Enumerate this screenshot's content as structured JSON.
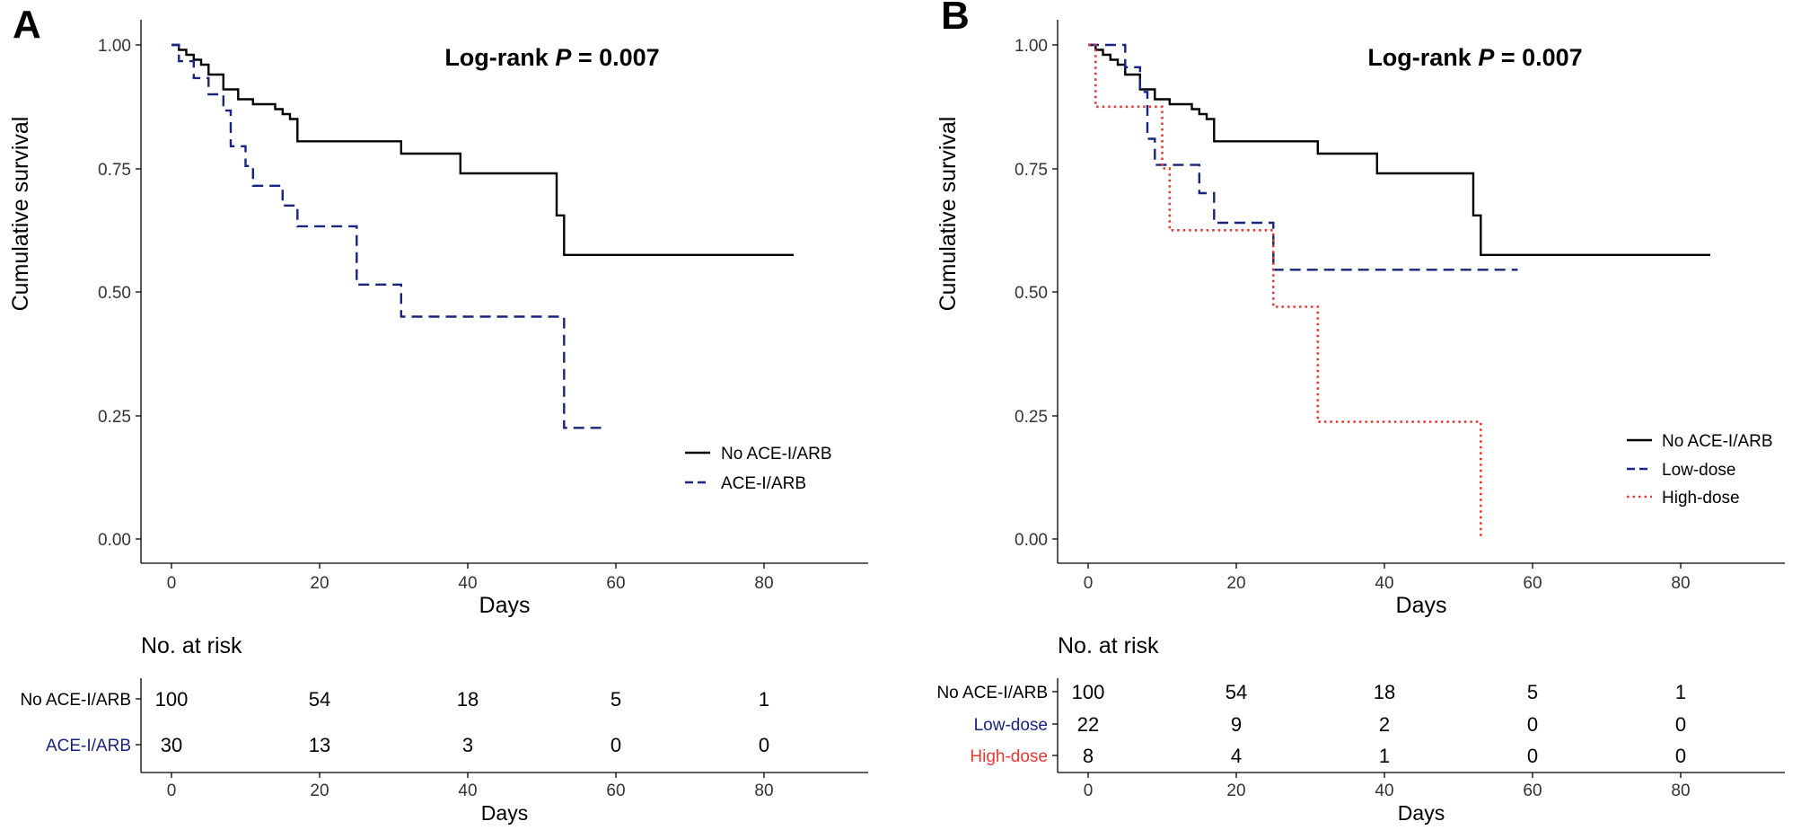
{
  "chart_data": [
    {
      "type": "line",
      "panel": "A",
      "title": "Log-rank P = 0.007",
      "title_parts": {
        "prefix": "Log-rank ",
        "italic": "P",
        "suffix": " = 0.007"
      },
      "xlabel": "Days",
      "ylabel": "Cumulative survival",
      "xlim": [
        -5,
        93
      ],
      "ylim": [
        -0.05,
        1.05
      ],
      "xticks": [
        0,
        20,
        40,
        60,
        80
      ],
      "xtick_labels": [
        "0",
        "20",
        "40",
        "60",
        "80"
      ],
      "yticks": [
        0.0,
        0.25,
        0.5,
        0.75,
        1.0
      ],
      "ytick_labels": [
        "0.00",
        "0.25",
        "0.50",
        "0.75",
        "1.00"
      ],
      "grid": false,
      "legend_position": "right",
      "series": [
        {
          "name": "No ACE-I/ARB",
          "color": "#000000",
          "style": "solid",
          "steps": [
            [
              0,
              1.0
            ],
            [
              1,
              0.99
            ],
            [
              2,
              0.98
            ],
            [
              3,
              0.97
            ],
            [
              4,
              0.96
            ],
            [
              5,
              0.94
            ],
            [
              7,
              0.91
            ],
            [
              9,
              0.89
            ],
            [
              11,
              0.88
            ],
            [
              14,
              0.87
            ],
            [
              15,
              0.86
            ],
            [
              16,
              0.85
            ],
            [
              17,
              0.805
            ],
            [
              31,
              0.78
            ],
            [
              39,
              0.74
            ],
            [
              52,
              0.655
            ],
            [
              53,
              0.575
            ],
            [
              84,
              0.575
            ]
          ]
        },
        {
          "name": "ACE-I/ARB",
          "color": "#1a237e",
          "style": "dashed",
          "steps": [
            [
              0,
              1.0
            ],
            [
              1,
              0.967
            ],
            [
              3,
              0.933
            ],
            [
              5,
              0.9
            ],
            [
              7,
              0.867
            ],
            [
              8,
              0.795
            ],
            [
              10,
              0.755
            ],
            [
              11,
              0.715
            ],
            [
              15,
              0.675
            ],
            [
              17,
              0.633
            ],
            [
              25,
              0.515
            ],
            [
              31,
              0.45
            ],
            [
              53,
              0.225
            ],
            [
              58,
              0.225
            ]
          ]
        }
      ],
      "risk_table": {
        "title": "No. at risk",
        "xlabel": "Days",
        "xticks": [
          0,
          20,
          40,
          60,
          80
        ],
        "xtick_labels": [
          "0",
          "20",
          "40",
          "60",
          "80"
        ],
        "rows": [
          {
            "label": "No ACE-I/ARB",
            "color": "#000000",
            "values": [
              "100",
              "54",
              "18",
              "5",
              "1"
            ]
          },
          {
            "label": "ACE-I/ARB",
            "color": "#1a237e",
            "values": [
              "30",
              "13",
              "3",
              "0",
              "0"
            ]
          }
        ]
      }
    },
    {
      "type": "line",
      "panel": "B",
      "title": "Log-rank P = 0.007",
      "title_parts": {
        "prefix": "Log-rank ",
        "italic": "P",
        "suffix": " = 0.007"
      },
      "xlabel": "Days",
      "ylabel": "Cumulative survival",
      "xlim": [
        -5,
        93
      ],
      "ylim": [
        -0.05,
        1.05
      ],
      "xticks": [
        0,
        20,
        40,
        60,
        80
      ],
      "xtick_labels": [
        "0",
        "20",
        "40",
        "60",
        "80"
      ],
      "yticks": [
        0.0,
        0.25,
        0.5,
        0.75,
        1.0
      ],
      "ytick_labels": [
        "0.00",
        "0.25",
        "0.50",
        "0.75",
        "1.00"
      ],
      "grid": false,
      "legend_position": "right",
      "series": [
        {
          "name": "No ACE-I/ARB",
          "color": "#000000",
          "style": "solid",
          "steps": [
            [
              0,
              1.0
            ],
            [
              1,
              0.99
            ],
            [
              2,
              0.98
            ],
            [
              3,
              0.97
            ],
            [
              4,
              0.96
            ],
            [
              5,
              0.94
            ],
            [
              7,
              0.91
            ],
            [
              9,
              0.89
            ],
            [
              11,
              0.88
            ],
            [
              14,
              0.87
            ],
            [
              15,
              0.86
            ],
            [
              16,
              0.85
            ],
            [
              17,
              0.805
            ],
            [
              31,
              0.78
            ],
            [
              39,
              0.74
            ],
            [
              52,
              0.655
            ],
            [
              53,
              0.575
            ],
            [
              84,
              0.575
            ]
          ]
        },
        {
          "name": "Low-dose",
          "color": "#1a237e",
          "style": "dashed",
          "steps": [
            [
              0,
              1.0
            ],
            [
              5,
              0.955
            ],
            [
              7,
              0.905
            ],
            [
              8,
              0.81
            ],
            [
              9,
              0.757
            ],
            [
              15,
              0.7
            ],
            [
              17,
              0.64
            ],
            [
              25,
              0.545
            ],
            [
              58,
              0.545
            ]
          ]
        },
        {
          "name": "High-dose",
          "color": "#e53935",
          "style": "dotted",
          "steps": [
            [
              0,
              1.0
            ],
            [
              1,
              0.875
            ],
            [
              10,
              0.75
            ],
            [
              11,
              0.625
            ],
            [
              25,
              0.47
            ],
            [
              31,
              0.237
            ],
            [
              53,
              0.0
            ]
          ]
        }
      ],
      "risk_table": {
        "title": "No. at risk",
        "xlabel": "Days",
        "xticks": [
          0,
          20,
          40,
          60,
          80
        ],
        "xtick_labels": [
          "0",
          "20",
          "40",
          "60",
          "80"
        ],
        "rows": [
          {
            "label": "No ACE-I/ARB",
            "color": "#000000",
            "values": [
              "100",
              "54",
              "18",
              "5",
              "1"
            ]
          },
          {
            "label": "Low-dose",
            "color": "#1a237e",
            "values": [
              "22",
              "9",
              "2",
              "0",
              "0"
            ]
          },
          {
            "label": "High-dose",
            "color": "#e53935",
            "values": [
              "8",
              "4",
              "1",
              "0",
              "0"
            ]
          }
        ]
      }
    }
  ]
}
